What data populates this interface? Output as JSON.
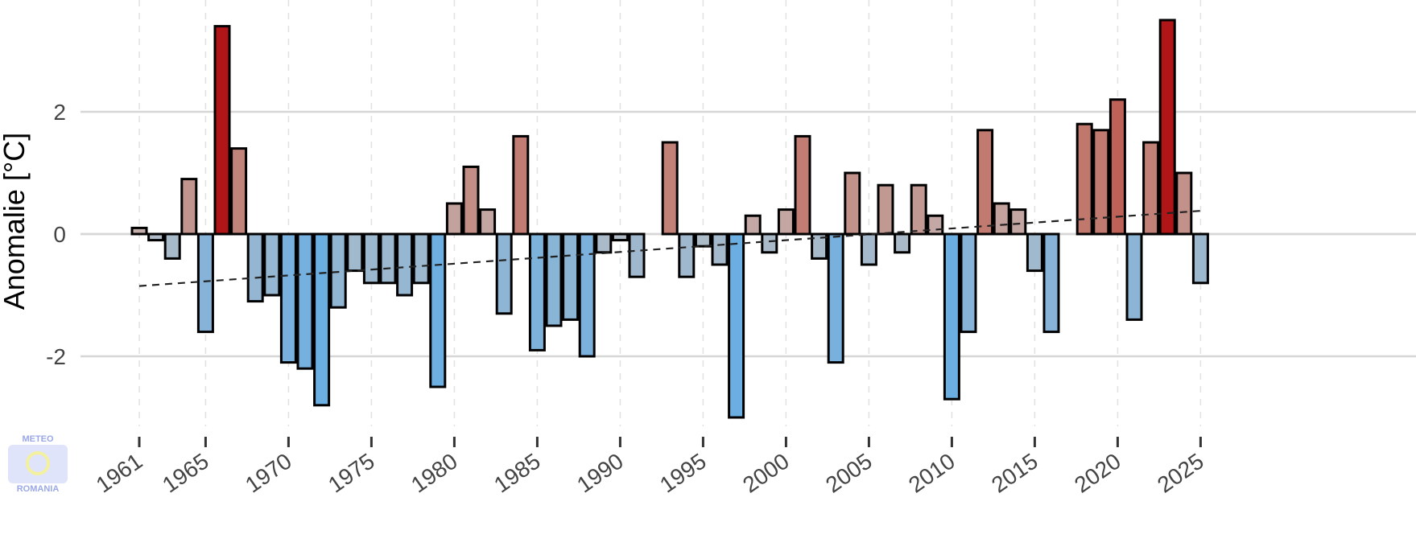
{
  "chart_data": {
    "type": "bar",
    "title": "",
    "xlabel": "",
    "ylabel": "Anomalie [°C]",
    "ylim": [
      -3.3,
      3.8
    ],
    "xlim": [
      1960,
      2026
    ],
    "yticks": [
      -2,
      0,
      2
    ],
    "ytick_labels": [
      "-2",
      "0",
      "2"
    ],
    "xticks": [
      1961,
      1965,
      1970,
      1975,
      1980,
      1985,
      1990,
      1995,
      2000,
      2005,
      2010,
      2015,
      2020,
      2025
    ],
    "xtick_labels": [
      "1961",
      "1965",
      "1970",
      "1975",
      "1980",
      "1985",
      "1990",
      "1995",
      "2000",
      "2005",
      "2010",
      "2015",
      "2020",
      "2025"
    ],
    "grid": true,
    "years": [
      1961,
      1962,
      1963,
      1964,
      1965,
      1966,
      1967,
      1968,
      1969,
      1970,
      1971,
      1972,
      1973,
      1974,
      1975,
      1976,
      1977,
      1978,
      1979,
      1980,
      1981,
      1982,
      1983,
      1984,
      1985,
      1986,
      1987,
      1988,
      1989,
      1990,
      1991,
      1992,
      1993,
      1994,
      1995,
      1996,
      1997,
      1998,
      1999,
      2000,
      2001,
      2002,
      2003,
      2004,
      2005,
      2006,
      2007,
      2008,
      2009,
      2010,
      2011,
      2012,
      2013,
      2014,
      2015,
      2016,
      2017,
      2018,
      2019,
      2020,
      2021,
      2022,
      2023,
      2024,
      2025
    ],
    "values": [
      0.1,
      -0.1,
      -0.4,
      0.9,
      -1.6,
      3.4,
      1.4,
      -1.1,
      -1.0,
      -2.1,
      -2.2,
      -2.8,
      -1.2,
      -0.6,
      -0.8,
      -0.8,
      -1.0,
      -0.8,
      -2.5,
      0.5,
      1.1,
      0.4,
      -1.3,
      1.6,
      -1.9,
      -1.5,
      -1.4,
      -2.0,
      -0.3,
      -0.1,
      -0.7,
      0.0,
      1.5,
      -0.7,
      -0.2,
      -0.5,
      -3.0,
      0.3,
      -0.3,
      0.4,
      1.6,
      -0.4,
      -2.1,
      1.0,
      -0.5,
      0.8,
      -0.3,
      0.8,
      0.3,
      -2.7,
      -1.6,
      1.7,
      0.5,
      0.4,
      -0.6,
      -1.6,
      0.0,
      1.8,
      1.7,
      2.2,
      -1.4,
      1.5,
      3.5,
      1.0,
      -0.8
    ],
    "trend": {
      "style": "dashed",
      "start": [
        1961,
        -0.85
      ],
      "end": [
        2025,
        0.38
      ]
    },
    "colors": {
      "warm_max": "#b01518",
      "warm_min": "#c4b2b0",
      "cold_max": "#6aaee2",
      "cold_min": "#b2bcc6"
    }
  },
  "logo": {
    "line1": "METEO",
    "line2": "ROMANIA"
  }
}
